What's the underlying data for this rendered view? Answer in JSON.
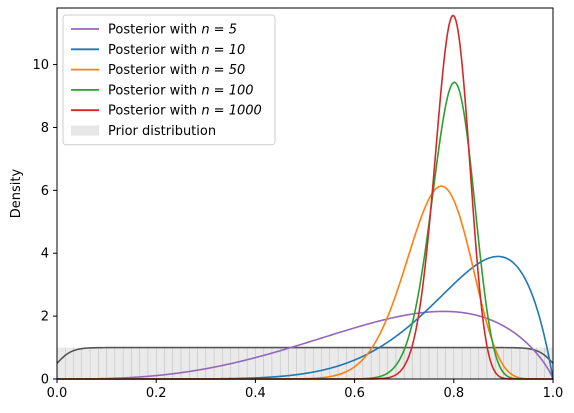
{
  "chart_data": {
    "type": "line",
    "title": "",
    "xlabel": "",
    "ylabel": "Density",
    "xlim": [
      0,
      1
    ],
    "ylim": [
      0,
      11.8
    ],
    "xticks": [
      "0.0",
      "0.2",
      "0.4",
      "0.6",
      "0.8",
      "1.0"
    ],
    "yticks": [
      "0",
      "2",
      "4",
      "6",
      "8",
      "10"
    ],
    "grid": false,
    "legend_position": "top-left",
    "series": [
      {
        "name": "Posterior with n = 5",
        "legend_prefix": "Posterior with ",
        "legend_math": "n = 5",
        "color": "#9467bd",
        "a": 4,
        "b": 1.85
      },
      {
        "name": "Posterior with n = 10",
        "legend_prefix": "Posterior with ",
        "legend_math": "n = 10",
        "color": "#1f77b4",
        "a": 9,
        "b": 2
      },
      {
        "name": "Posterior with n = 50",
        "legend_prefix": "Posterior with ",
        "legend_math": "n = 50",
        "color": "#ff7f0e",
        "a": 32,
        "b": 10
      },
      {
        "name": "Posterior with n = 100",
        "legend_prefix": "Posterior with ",
        "legend_math": "n = 100",
        "color": "#2ca02c",
        "a": 71.5,
        "b": 18.5
      },
      {
        "name": "Posterior with n = 1000",
        "legend_prefix": "Posterior with ",
        "legend_math": "n = 1000",
        "color": "#d62728",
        "a": 108,
        "b": 28
      }
    ],
    "prior": {
      "name": "Prior distribution",
      "legend_label": "Prior distribution",
      "fill_color": "#e6e6e6",
      "edge_color": "#bbbbbb",
      "line_color": "#555555",
      "density": 1.0
    }
  }
}
